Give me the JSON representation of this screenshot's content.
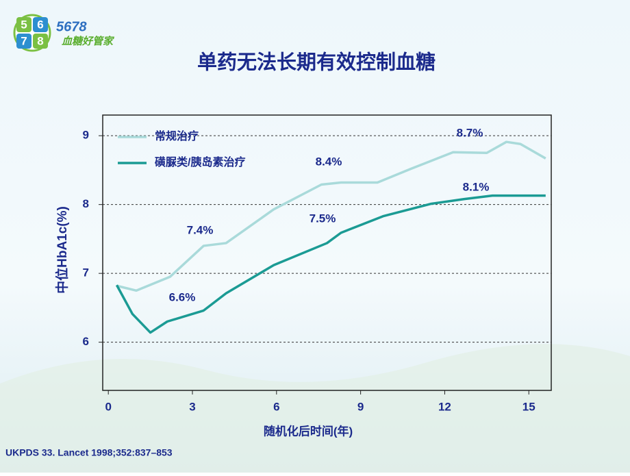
{
  "logo": {
    "digits": [
      "5",
      "6",
      "7",
      "8"
    ],
    "number": "5678",
    "name": "血糖好管家"
  },
  "chart_data": {
    "type": "line",
    "title": "单药无法长期有效控制血糖",
    "x_label": "随机化后时间(年)",
    "y_label": "中位HbA1c(%)",
    "series": [
      {
        "name": "常规治疗",
        "color": "#a9dada",
        "x": [
          0.3,
          1,
          2.2,
          3.4,
          4.2,
          5.9,
          7.6,
          8.3,
          9.6,
          10.8,
          12.3,
          13.5,
          14.2,
          14.7,
          15.6
        ],
        "values": [
          6.82,
          6.75,
          6.95,
          7.4,
          7.44,
          7.93,
          8.29,
          8.32,
          8.32,
          8.52,
          8.76,
          8.75,
          8.91,
          8.88,
          8.67
        ]
      },
      {
        "name": "磺脲类/胰岛素治疗",
        "color": "#1b9b94",
        "x": [
          0.3,
          0.86,
          1.5,
          2.1,
          3.4,
          4.2,
          5.9,
          7.8,
          8.3,
          9.8,
          11.5,
          12.7,
          13.7,
          15.6
        ],
        "values": [
          6.83,
          6.41,
          6.14,
          6.3,
          6.46,
          6.71,
          7.12,
          7.44,
          7.59,
          7.83,
          8.01,
          8.08,
          8.13,
          8.13
        ]
      }
    ],
    "annotations": [
      "8.7%",
      "8.4%",
      "7.4%",
      "6.6%",
      "7.5%",
      "8.1%"
    ],
    "xlim": [
      -0.2,
      15.8
    ],
    "xticks": [
      0,
      3,
      6,
      9,
      12,
      15
    ],
    "ylim": [
      5.3,
      9.3
    ],
    "yticks": [
      9,
      8,
      7,
      6
    ],
    "grid": true,
    "source": "UKPDS 33. Lancet 1998;352:837–853"
  }
}
